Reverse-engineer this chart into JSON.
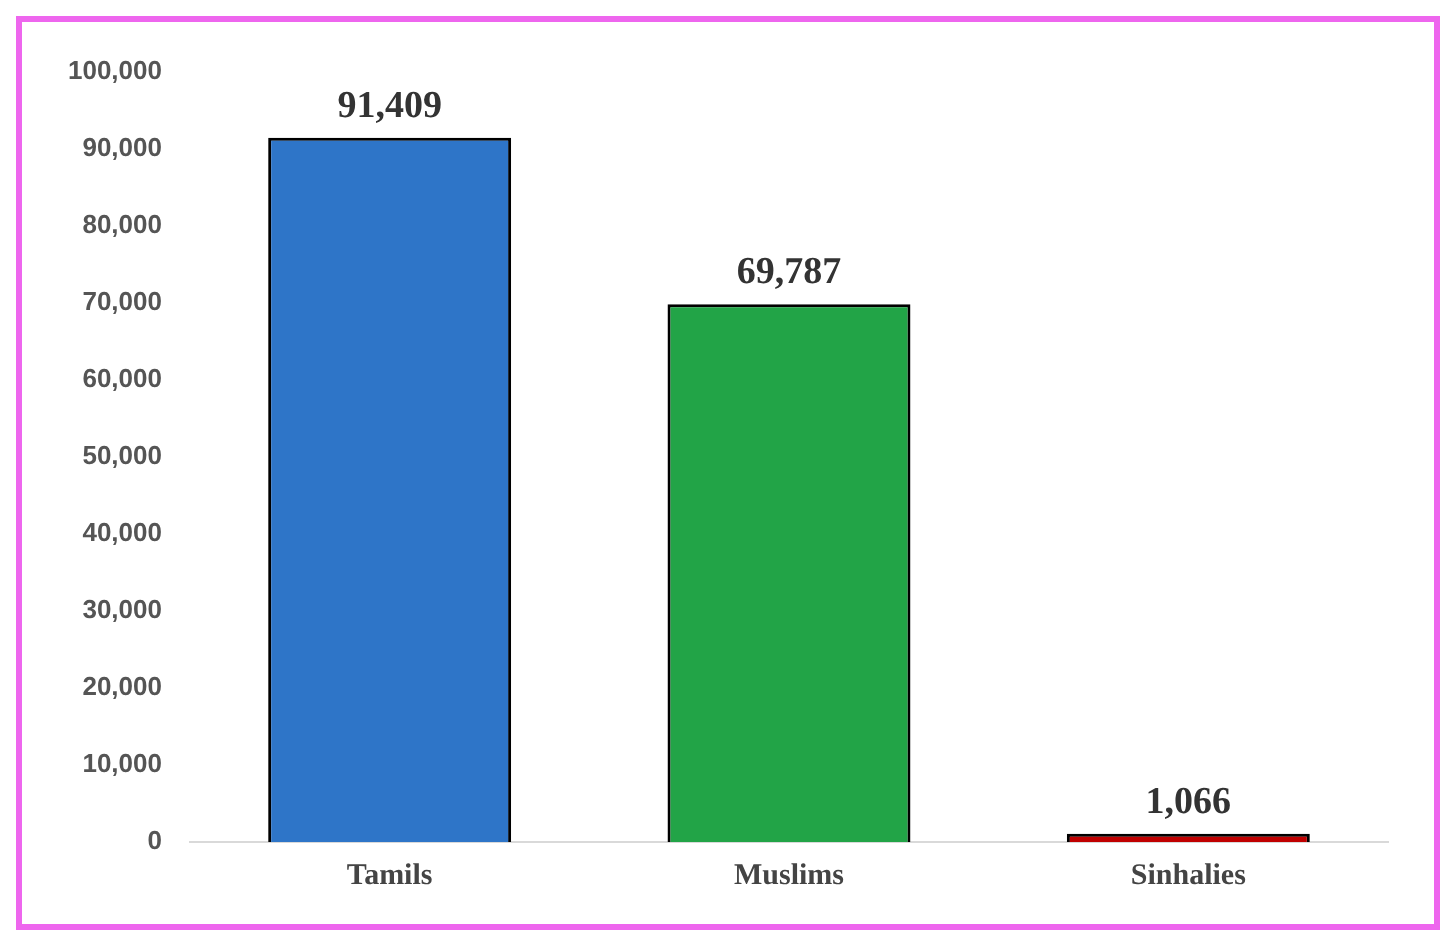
{
  "chart_data": {
    "type": "bar",
    "categories": [
      "Tamils",
      "Muslims",
      "Sinhalies"
    ],
    "values": [
      91409,
      69787,
      1066
    ],
    "value_labels": [
      "91,409",
      "69,787",
      "1,066"
    ],
    "colors": [
      "#2e75c8",
      "#22a447",
      "#c00000"
    ],
    "ylim": [
      0,
      100000
    ],
    "yticks": [
      0,
      {
        "value": 10000,
        "label": "10,000"
      },
      {
        "value": 20000,
        "label": "20,000"
      },
      {
        "value": 30000,
        "label": "30,000"
      },
      {
        "value": 40000,
        "label": "40,000"
      },
      {
        "value": 50000,
        "label": "50,000"
      },
      {
        "value": 60000,
        "label": "60,000"
      },
      {
        "value": 70000,
        "label": "70,000"
      },
      {
        "value": 80000,
        "label": "80,000"
      },
      {
        "value": 90000,
        "label": "90,000"
      },
      {
        "value": 100000,
        "label": "100,000"
      }
    ],
    "grid": false,
    "legend": false
  }
}
